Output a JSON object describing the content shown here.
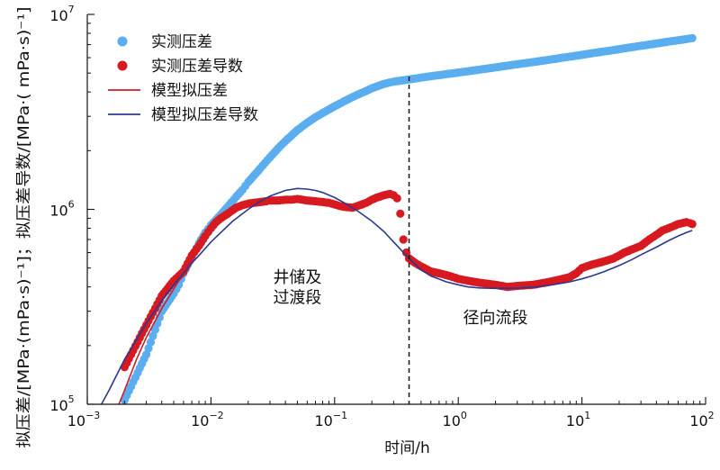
{
  "chart_data": {
    "type": "scatter",
    "title": "",
    "xlabel": "时间/h",
    "ylabel": "拟压差/[MPa·(mPa·s)⁻¹]；拟压差导数/[MPa·( mPa·s)⁻¹]",
    "xscale": "log",
    "yscale": "log",
    "xlim": [
      0.001,
      100
    ],
    "ylim": [
      100000,
      10000000
    ],
    "x_ticks": [
      {
        "base": "10",
        "exp": "−3"
      },
      {
        "base": "10",
        "exp": "−2"
      },
      {
        "base": "10",
        "exp": "−1"
      },
      {
        "base": "10",
        "exp": "0"
      },
      {
        "base": "10",
        "exp": "1"
      },
      {
        "base": "10",
        "exp": "2"
      }
    ],
    "y_ticks": [
      {
        "base": "10",
        "exp": "5"
      },
      {
        "base": "10",
        "exp": "6"
      },
      {
        "base": "10",
        "exp": "7"
      }
    ],
    "grid": false,
    "legend_position": "top-left",
    "series": [
      {
        "name": "实测压差",
        "kind": "points",
        "color": "#5aaef0",
        "x": [
          0.002,
          0.003,
          0.004,
          0.005,
          0.0055,
          0.006,
          0.007,
          0.008,
          0.009,
          0.01,
          0.012,
          0.014,
          0.016,
          0.018,
          0.02,
          0.025,
          0.03,
          0.035,
          0.04,
          0.05,
          0.06,
          0.07,
          0.08,
          0.1,
          0.12,
          0.15,
          0.18,
          0.2,
          0.25,
          0.3,
          0.35,
          0.4,
          0.45,
          0.5,
          0.6,
          0.7,
          0.8,
          1,
          1.2,
          1.5,
          2,
          2.5,
          3,
          4,
          5,
          6,
          7,
          8,
          10,
          12,
          15,
          20,
          25,
          30,
          40,
          50,
          60,
          70,
          78
        ],
        "y": [
          105000,
          180000,
          300000,
          370000,
          410000,
          470000,
          570000,
          670000,
          760000,
          830000,
          940000,
          1050000,
          1160000,
          1260000,
          1380000,
          1620000,
          1850000,
          2060000,
          2240000,
          2550000,
          2780000,
          2970000,
          3120000,
          3380000,
          3590000,
          3850000,
          4050000,
          4180000,
          4400000,
          4520000,
          4580000,
          4640000,
          4690000,
          4740000,
          4820000,
          4880000,
          4940000,
          5030000,
          5110000,
          5210000,
          5350000,
          5460000,
          5550000,
          5690000,
          5810000,
          5910000,
          6000000,
          6070000,
          6200000,
          6320000,
          6450000,
          6630000,
          6780000,
          6900000,
          7090000,
          7250000,
          7370000,
          7470000,
          7550000
        ]
      },
      {
        "name": "实测压差导数",
        "kind": "points",
        "color": "#d71920",
        "x": [
          0.002,
          0.003,
          0.004,
          0.005,
          0.006,
          0.007,
          0.008,
          0.009,
          0.01,
          0.011,
          0.012,
          0.014,
          0.016,
          0.018,
          0.02,
          0.022,
          0.025,
          0.028,
          0.03,
          0.035,
          0.04,
          0.045,
          0.05,
          0.055,
          0.06,
          0.07,
          0.08,
          0.09,
          0.1,
          0.11,
          0.12,
          0.14,
          0.16,
          0.18,
          0.2,
          0.22,
          0.25,
          0.28,
          0.3,
          0.32,
          0.34,
          0.36,
          0.38,
          0.4,
          0.45,
          0.5,
          0.6,
          0.7,
          0.8,
          0.9,
          1,
          1.2,
          1.5,
          2,
          2.5,
          3,
          4,
          5,
          6,
          7,
          8,
          9,
          10,
          12,
          15,
          18,
          20,
          22,
          25,
          30,
          35,
          40,
          45,
          50,
          55,
          60,
          65,
          70,
          75,
          78
        ],
        "y": [
          155000,
          255000,
          360000,
          430000,
          480000,
          580000,
          650000,
          730000,
          800000,
          860000,
          900000,
          960000,
          1020000,
          1050000,
          1070000,
          1080000,
          1090000,
          1100000,
          1110000,
          1110000,
          1120000,
          1120000,
          1130000,
          1120000,
          1110000,
          1100000,
          1090000,
          1080000,
          1060000,
          1040000,
          1030000,
          1020000,
          1050000,
          1080000,
          1120000,
          1150000,
          1180000,
          1200000,
          1180000,
          1140000,
          950000,
          700000,
          600000,
          560000,
          530000,
          510000,
          480000,
          470000,
          460000,
          450000,
          440000,
          430000,
          420000,
          410000,
          400000,
          405000,
          410000,
          420000,
          430000,
          440000,
          450000,
          470000,
          500000,
          520000,
          540000,
          560000,
          580000,
          600000,
          620000,
          650000,
          700000,
          740000,
          780000,
          800000,
          820000,
          840000,
          850000,
          860000,
          850000,
          840000
        ]
      },
      {
        "name": "模型拟压差",
        "kind": "line",
        "color": "#cc1f28",
        "x": [
          0.0018,
          0.002,
          0.0025,
          0.003,
          0.004,
          0.005,
          0.006,
          0.007,
          0.008,
          0.009,
          0.01,
          0.012
        ],
        "y": [
          100000,
          118000,
          170000,
          220000,
          310000,
          390000,
          470000,
          550000,
          630000,
          700000,
          770000,
          900000
        ]
      },
      {
        "name": "模型拟压差导数",
        "kind": "line",
        "color": "#2b3990",
        "x": [
          0.0013,
          0.0015,
          0.002,
          0.003,
          0.004,
          0.005,
          0.006,
          0.007,
          0.008,
          0.01,
          0.012,
          0.015,
          0.02,
          0.025,
          0.03,
          0.04,
          0.05,
          0.06,
          0.07,
          0.08,
          0.1,
          0.12,
          0.15,
          0.2,
          0.25,
          0.3,
          0.4,
          0.5,
          0.6,
          0.8,
          1,
          1.2,
          1.5,
          2,
          3,
          4,
          5,
          6,
          8,
          10,
          12,
          15,
          20,
          25,
          30,
          40,
          50,
          60,
          70,
          78
        ],
        "y": [
          100000,
          118000,
          170000,
          260000,
          340000,
          410000,
          470000,
          530000,
          580000,
          680000,
          760000,
          870000,
          1000000,
          1100000,
          1170000,
          1250000,
          1280000,
          1270000,
          1250000,
          1220000,
          1150000,
          1080000,
          990000,
          870000,
          770000,
          680000,
          560000,
          490000,
          455000,
          425000,
          410000,
          400000,
          395000,
          393000,
          394000,
          398000,
          405000,
          412000,
          425000,
          440000,
          455000,
          478000,
          515000,
          550000,
          585000,
          640000,
          690000,
          730000,
          760000,
          780000
        ]
      }
    ],
    "annotations": [
      {
        "text": "井储及",
        "x": 0.05,
        "y": 420000
      },
      {
        "text": "过渡段",
        "x": 0.05,
        "y": 330000
      },
      {
        "text": "径向流段",
        "x": 2.0,
        "y": 260000
      }
    ],
    "vline": {
      "x": 0.4,
      "style": "dashed",
      "color": "#111111"
    }
  }
}
